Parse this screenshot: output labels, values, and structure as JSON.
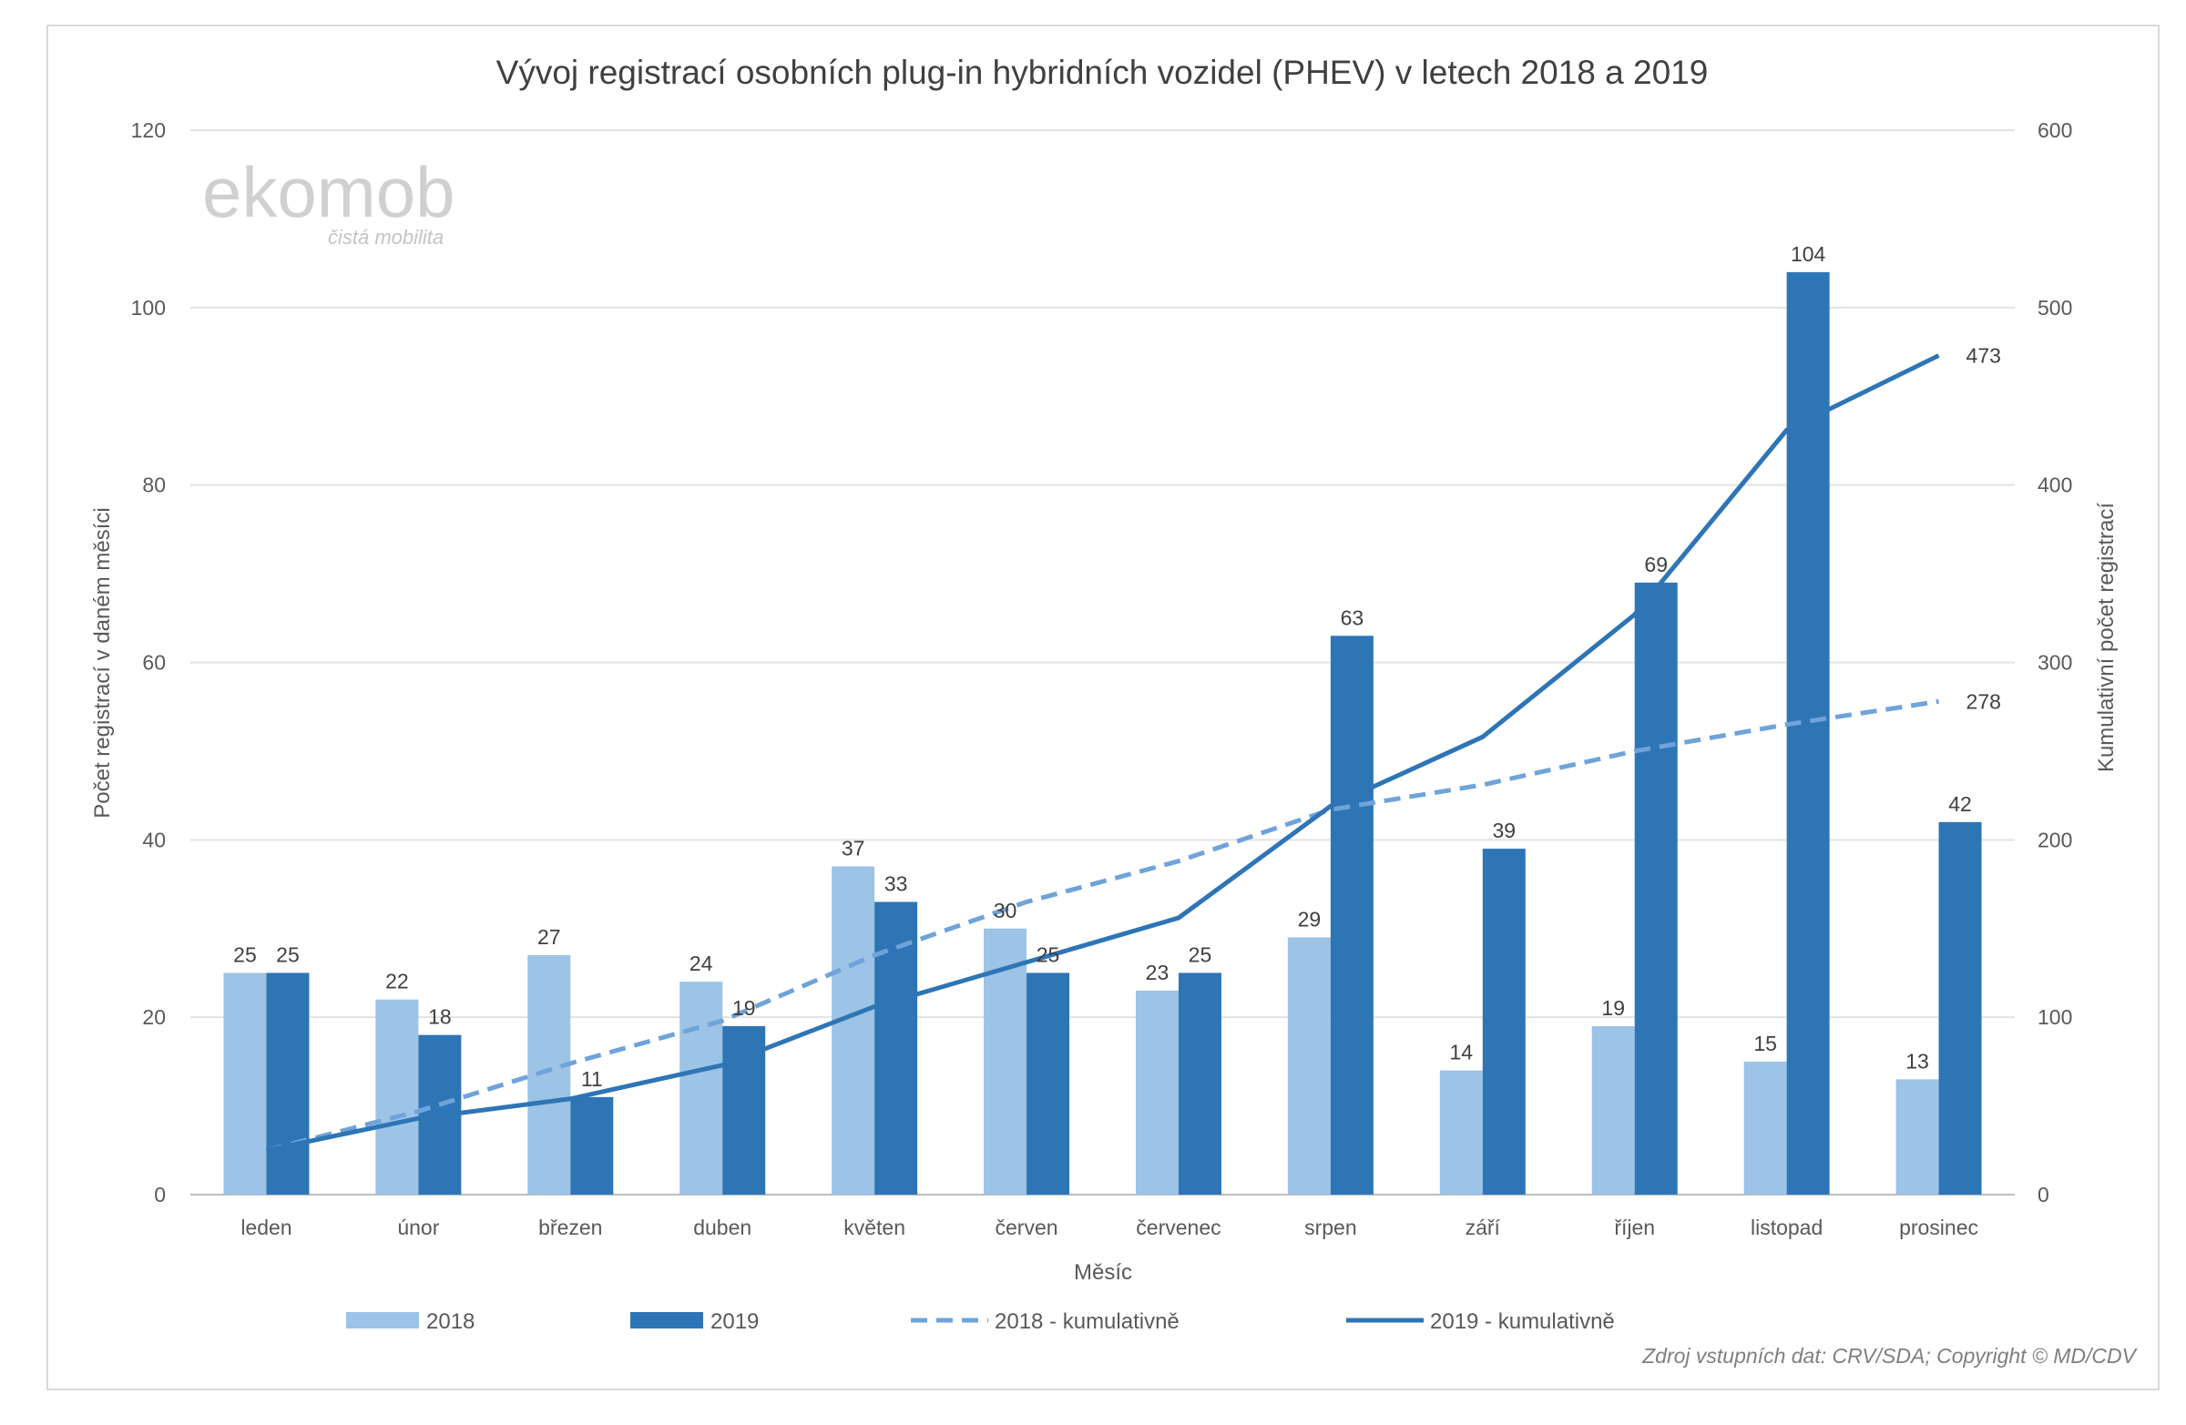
{
  "logo": {
    "text": "ekomob",
    "tagline": "čistá mobilita"
  },
  "source_note": "Zdroj vstupních dat: CRV/SDA; Copyright © MD/CDV",
  "colors": {
    "2018": "#9DC3E6",
    "2019": "#2E75B6",
    "2018_cum": "#6FA3DA",
    "2019_cum": "#2E75B6"
  },
  "chart_data": {
    "type": "bar",
    "title": "Vývoj registrací osobních plug-in hybridních vozidel (PHEV) v letech 2018 a 2019",
    "xlabel": "Měsíc",
    "ylabel": "Počet registrací v daném měsíci",
    "y2label": "Kumulativní počet registrací",
    "ylim": [
      0,
      120
    ],
    "y2lim": [
      0,
      600
    ],
    "yticks": [
      0,
      20,
      40,
      60,
      80,
      100,
      120
    ],
    "y2ticks": [
      0,
      100,
      200,
      300,
      400,
      500,
      600
    ],
    "grid": true,
    "legend": "bottom",
    "categories": [
      "leden",
      "únor",
      "březen",
      "duben",
      "květen",
      "červen",
      "červenec",
      "srpen",
      "září",
      "říjen",
      "listopad",
      "prosinec"
    ],
    "series": [
      {
        "name": "2018",
        "type": "bar",
        "axis": "left",
        "values": [
          25,
          22,
          27,
          24,
          37,
          30,
          23,
          29,
          14,
          19,
          15,
          13
        ]
      },
      {
        "name": "2019",
        "type": "bar",
        "axis": "left",
        "values": [
          25,
          18,
          11,
          19,
          33,
          25,
          25,
          63,
          39,
          69,
          104,
          42
        ]
      },
      {
        "name": "2018 - kumulativně",
        "type": "line",
        "style": "dashed",
        "axis": "right",
        "values": [
          25,
          47,
          74,
          98,
          135,
          165,
          188,
          217,
          231,
          250,
          265,
          278
        ],
        "end_label": "278"
      },
      {
        "name": "2019 - kumulativně",
        "type": "line",
        "style": "solid",
        "axis": "right",
        "values": [
          25,
          43,
          54,
          73,
          106,
          131,
          156,
          219,
          258,
          327,
          431,
          473
        ],
        "end_label": "473"
      }
    ]
  }
}
